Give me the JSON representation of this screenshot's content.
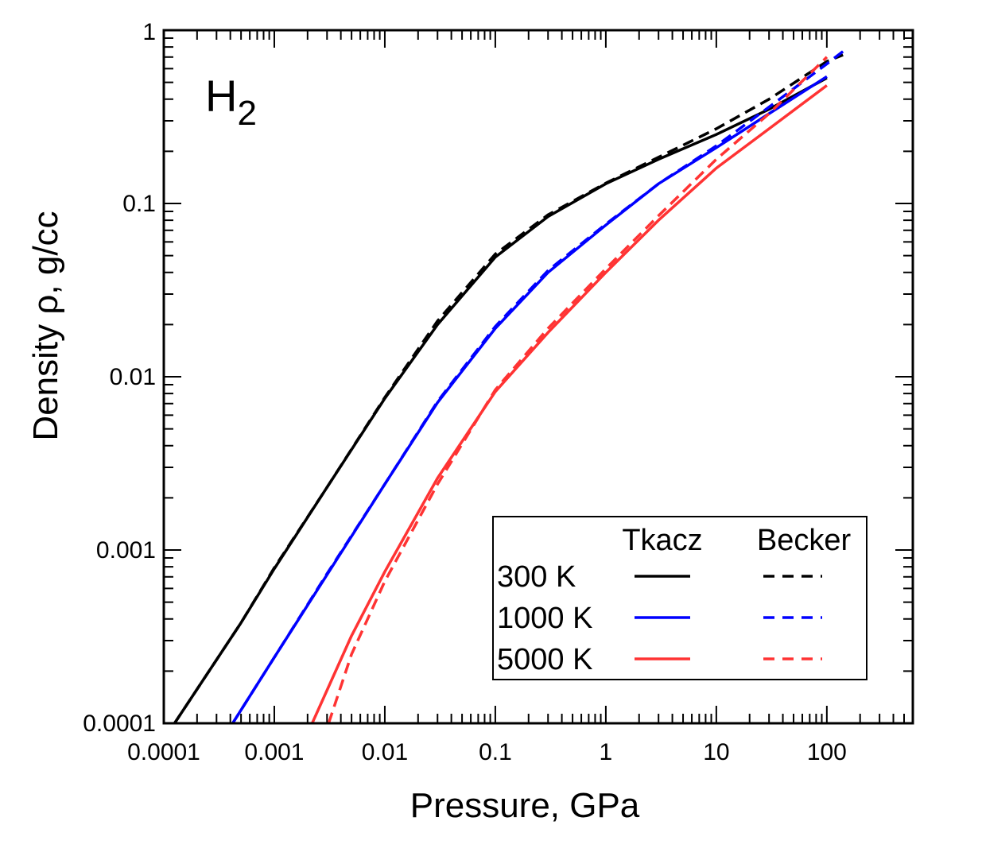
{
  "chart_data": {
    "type": "line",
    "title": "",
    "annotation": {
      "text": "H",
      "subscript": "2"
    },
    "xlabel": "Pressure, GPa",
    "ylabel": "Density ρ,  g/cc",
    "xscale": "log",
    "yscale": "log",
    "xlim": [
      0.0001,
      600
    ],
    "ylim": [
      0.0001,
      1
    ],
    "xticks": [
      {
        "value": 0.0001,
        "label": "0.0001"
      },
      {
        "value": 0.001,
        "label": "0.001"
      },
      {
        "value": 0.01,
        "label": "0.01"
      },
      {
        "value": 0.1,
        "label": "0.1"
      },
      {
        "value": 1,
        "label": "1"
      },
      {
        "value": 10,
        "label": "10"
      },
      {
        "value": 100,
        "label": "100"
      }
    ],
    "yticks": [
      {
        "value": 0.0001,
        "label": "0.0001"
      },
      {
        "value": 0.001,
        "label": "0.001"
      },
      {
        "value": 0.01,
        "label": "0.01"
      },
      {
        "value": 0.1,
        "label": "0.1"
      },
      {
        "value": 1,
        "label": "1"
      }
    ],
    "legend": {
      "position": "bottom-right",
      "column_headers": [
        "Tkacz",
        "Becker"
      ]
    },
    "series": [
      {
        "name": "300 K Tkacz",
        "label": "300 K",
        "color": "#000000",
        "dash": "solid",
        "x": [
          0.000125,
          0.0005,
          0.001,
          0.003,
          0.01,
          0.03,
          0.1,
          0.3,
          1,
          3,
          10,
          30,
          100
        ],
        "y": [
          0.0001,
          0.00038,
          0.00078,
          0.0023,
          0.0075,
          0.02,
          0.049,
          0.084,
          0.13,
          0.18,
          0.25,
          0.35,
          0.53
        ]
      },
      {
        "name": "300 K Becker",
        "label": "300 K",
        "color": "#000000",
        "dash": "dashed",
        "x": [
          0.000125,
          0.0005,
          0.001,
          0.003,
          0.01,
          0.03,
          0.1,
          0.3,
          1,
          3,
          10,
          30,
          100,
          140
        ],
        "y": [
          0.0001,
          0.00038,
          0.00079,
          0.0023,
          0.0076,
          0.021,
          0.051,
          0.086,
          0.131,
          0.185,
          0.27,
          0.4,
          0.66,
          0.72
        ]
      },
      {
        "name": "1000 K Tkacz",
        "label": "1000 K",
        "color": "#0000ff",
        "dash": "solid",
        "x": [
          0.00042,
          0.001,
          0.003,
          0.01,
          0.03,
          0.1,
          0.3,
          1,
          3,
          10,
          30,
          100
        ],
        "y": [
          0.0001,
          0.00024,
          0.00072,
          0.0024,
          0.0071,
          0.019,
          0.04,
          0.075,
          0.13,
          0.21,
          0.33,
          0.54
        ]
      },
      {
        "name": "1000 K Becker",
        "label": "1000 K",
        "color": "#0000ff",
        "dash": "dashed",
        "x": [
          0.00042,
          0.001,
          0.003,
          0.01,
          0.03,
          0.1,
          0.3,
          1,
          3,
          10,
          30,
          100,
          150
        ],
        "y": [
          0.0001,
          0.00024,
          0.00073,
          0.0024,
          0.0072,
          0.0195,
          0.041,
          0.076,
          0.13,
          0.215,
          0.36,
          0.64,
          0.78
        ]
      },
      {
        "name": "5000 K Tkacz",
        "label": "5000 K",
        "color": "#ff3333",
        "dash": "solid",
        "x": [
          0.0022,
          0.005,
          0.01,
          0.03,
          0.1,
          0.3,
          1,
          3,
          10,
          30,
          100
        ],
        "y": [
          0.0001,
          0.00032,
          0.00075,
          0.0026,
          0.0082,
          0.018,
          0.04,
          0.08,
          0.16,
          0.27,
          0.48
        ]
      },
      {
        "name": "5000 K Becker",
        "label": "5000 K",
        "color": "#ff3333",
        "dash": "dashed",
        "x": [
          0.0031,
          0.005,
          0.01,
          0.03,
          0.1,
          0.3,
          1,
          3,
          10,
          30,
          100
        ],
        "y": [
          0.0001,
          0.00025,
          0.00066,
          0.0024,
          0.0084,
          0.019,
          0.042,
          0.085,
          0.18,
          0.33,
          0.7
        ]
      }
    ]
  }
}
